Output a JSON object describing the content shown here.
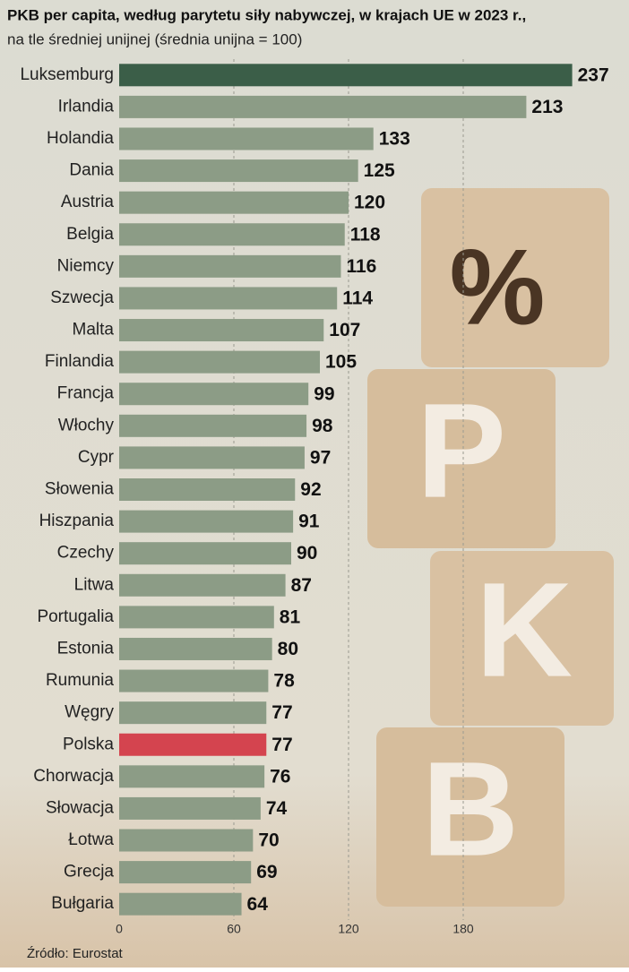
{
  "chart_data": {
    "type": "barh",
    "title": "PKB per capita, według parytetu siły nabywczej, w krajach UE w 2023 r.,",
    "subtitle": "na tle średniej unijnej (średnia unijna = 100)",
    "source": "Źródło: Eurostat",
    "categories": [
      "Luksemburg",
      "Irlandia",
      "Holandia",
      "Dania",
      "Austria",
      "Belgia",
      "Niemcy",
      "Szwecja",
      "Malta",
      "Finlandia",
      "Francja",
      "Włochy",
      "Cypr",
      "Słowenia",
      "Hiszpania",
      "Czechy",
      "Litwa",
      "Portugalia",
      "Estonia",
      "Rumunia",
      "Węgry",
      "Polska",
      "Chorwacja",
      "Słowacja",
      "Łotwa",
      "Grecja",
      "Bułgaria"
    ],
    "values": [
      237,
      213,
      133,
      125,
      120,
      118,
      116,
      114,
      107,
      105,
      99,
      98,
      97,
      92,
      91,
      90,
      87,
      81,
      80,
      78,
      77,
      77,
      76,
      74,
      70,
      69,
      64
    ],
    "colors": [
      "#3b5e48",
      "#8c9c86",
      "#8c9c86",
      "#8c9c86",
      "#8c9c86",
      "#8c9c86",
      "#8c9c86",
      "#8c9c86",
      "#8c9c86",
      "#8c9c86",
      "#8c9c86",
      "#8c9c86",
      "#8c9c86",
      "#8c9c86",
      "#8c9c86",
      "#8c9c86",
      "#8c9c86",
      "#8c9c86",
      "#8c9c86",
      "#8c9c86",
      "#8c9c86",
      "#d4444f",
      "#8c9c86",
      "#8c9c86",
      "#8c9c86",
      "#8c9c86",
      "#8c9c86"
    ],
    "xlim": [
      0,
      240
    ],
    "xticks": [
      0,
      60,
      120,
      180
    ],
    "grid": true
  },
  "illustration": {
    "symbol": "%",
    "letters": [
      "P",
      "K",
      "B"
    ]
  }
}
